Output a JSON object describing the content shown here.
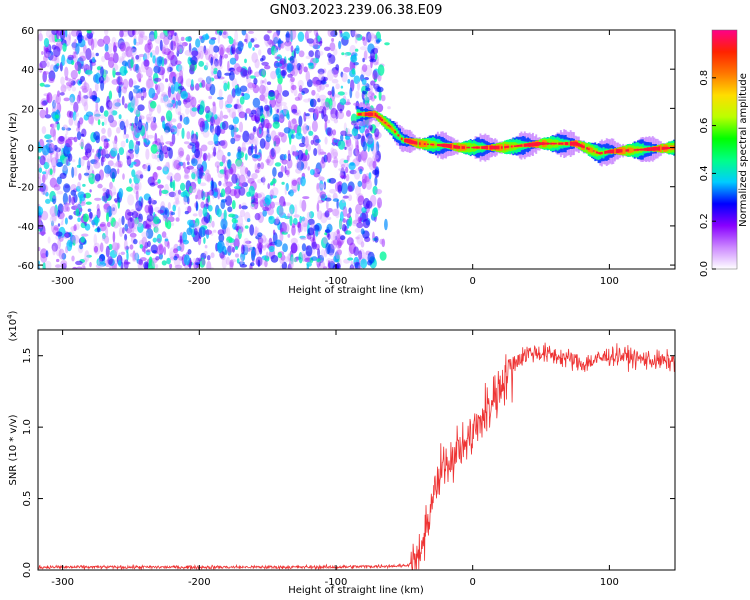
{
  "title": "GN03.2023.239.06.38.E09",
  "chart_data": [
    {
      "type": "heatmap",
      "xlabel": "Height of straight line (km)",
      "ylabel": "Frequency (Hz)",
      "xlim": [
        -318,
        148
      ],
      "ylim": [
        -62,
        60
      ],
      "xticks": [
        -300,
        -200,
        -100,
        0,
        100
      ],
      "yticks": [
        -60,
        -40,
        -20,
        0,
        20,
        40,
        60
      ],
      "grid": false,
      "colorbar": {
        "label": "Normalized spectral amplitude",
        "range": [
          0,
          1
        ],
        "ticks": [
          0.0,
          0.2,
          0.4,
          0.6,
          0.8
        ],
        "colors": [
          "#ffffff",
          "#cc88ff",
          "#8800ff",
          "#0000ff",
          "#00ccff",
          "#00ff88",
          "#00ff00",
          "#bbff00",
          "#ffdd00",
          "#ff7700",
          "#ff2200",
          "#ff0088"
        ]
      },
      "noise_region": {
        "x": [
          -318,
          -68
        ],
        "frequency_range": [
          -62,
          60
        ],
        "amplitude_range": [
          0.05,
          0.45
        ]
      },
      "signal_track": [
        {
          "x": -85,
          "f": 17
        },
        {
          "x": -72,
          "f": 17
        },
        {
          "x": -60,
          "f": 10
        },
        {
          "x": -52,
          "f": 4
        },
        {
          "x": -40,
          "f": 2
        },
        {
          "x": -20,
          "f": 1
        },
        {
          "x": -10,
          "f": 0
        },
        {
          "x": 20,
          "f": 0
        },
        {
          "x": 50,
          "f": 2
        },
        {
          "x": 75,
          "f": 2
        },
        {
          "x": 85,
          "f": -1
        },
        {
          "x": 92,
          "f": -3
        },
        {
          "x": 100,
          "f": -2
        },
        {
          "x": 148,
          "f": 0
        }
      ],
      "signal_peak_amplitude": 0.95
    },
    {
      "type": "line",
      "xlabel": "Height of straight line (km)",
      "ylabel": "SNR (10 * v/v)",
      "y_multiplier": "(x10⁴)",
      "y_multiplier_base": "(x10",
      "y_multiplier_exp": "4",
      "y_multiplier_close": ")",
      "xlim": [
        -318,
        148
      ],
      "ylim": [
        0,
        1.68
      ],
      "xticks": [
        -300,
        -200,
        -100,
        0,
        100
      ],
      "yticks": [
        0.0,
        0.5,
        1.0,
        1.5
      ],
      "yticklabels": [
        "0.0",
        "0.5",
        "1.0",
        "1.5"
      ],
      "color": "#ee3333",
      "series": [
        {
          "x": [
            -318,
            -200,
            -100,
            -50,
            -40,
            -35,
            -30,
            -20,
            -10,
            0,
            10,
            20,
            30,
            40,
            50,
            60,
            70,
            80,
            90,
            100,
            110,
            120,
            130,
            140,
            148
          ],
          "values": [
            0.02,
            0.02,
            0.02,
            0.03,
            0.06,
            0.2,
            0.5,
            0.75,
            0.85,
            0.95,
            1.1,
            1.3,
            1.45,
            1.52,
            1.52,
            1.5,
            1.48,
            1.44,
            1.47,
            1.5,
            1.5,
            1.48,
            1.47,
            1.46,
            1.46
          ]
        }
      ]
    }
  ]
}
